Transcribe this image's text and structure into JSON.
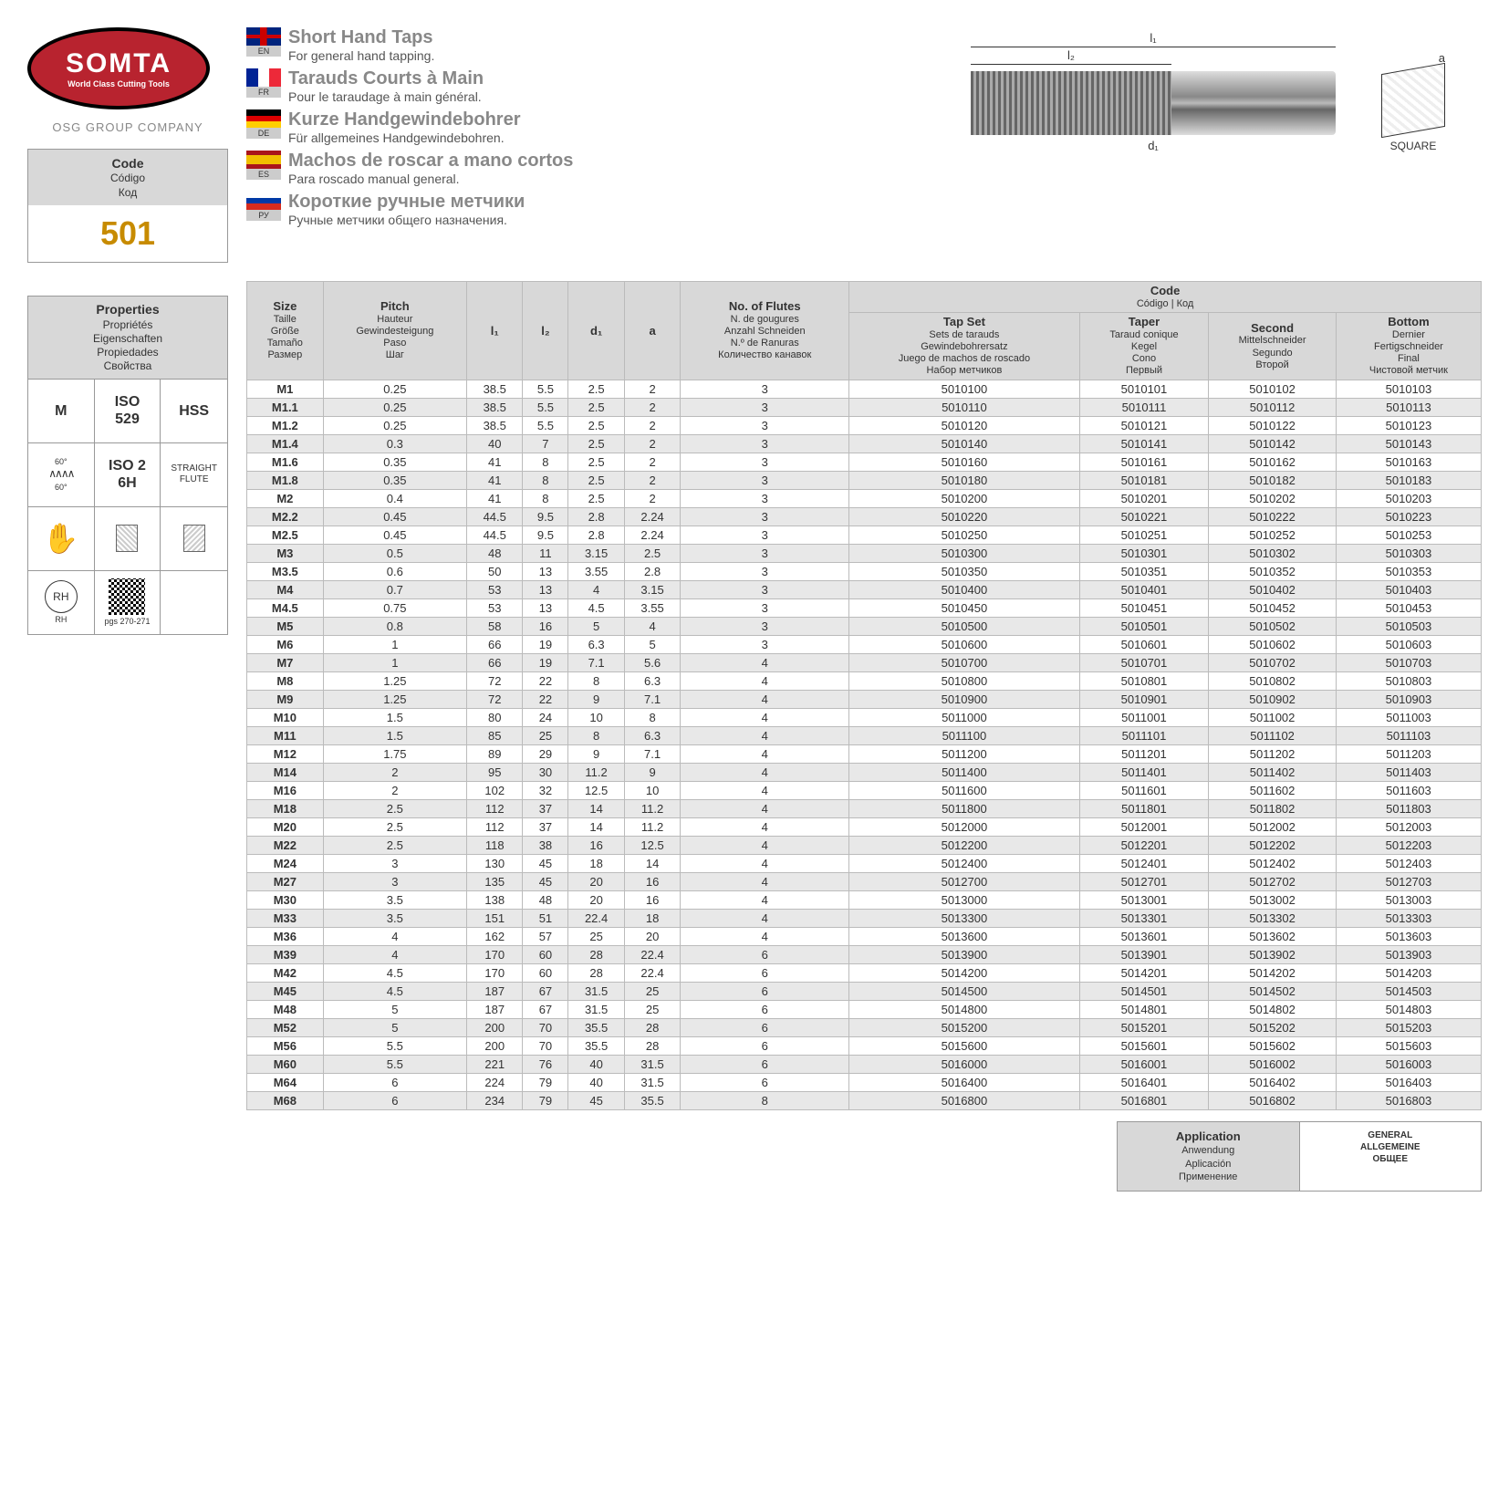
{
  "logo": {
    "title": "SOMTA",
    "sub": "World Class Cutting Tools",
    "osg": "OSG GROUP COMPANY"
  },
  "code": {
    "labels": [
      "Code",
      "Código",
      "Код"
    ],
    "value": "501"
  },
  "properties": {
    "labels": [
      "Properties",
      "Propriétés",
      "Eigenschaften",
      "Propiedades",
      "Свойства"
    ],
    "cells": [
      {
        "t": "M",
        "b": true
      },
      {
        "t": "ISO\n529",
        "b": true
      },
      {
        "t": "HSS",
        "b": true
      },
      {
        "icon": "zigzag",
        "t": "60°"
      },
      {
        "t": "ISO 2\n6H",
        "b": true
      },
      {
        "t": "STRAIGHT\nFLUTE"
      },
      {
        "icon": "hand"
      },
      {
        "icon": "sq1"
      },
      {
        "icon": "sq2"
      },
      {
        "icon": "rh",
        "t": "RH"
      },
      {
        "icon": "qr",
        "t": "pgs 270-271"
      },
      {
        "t": ""
      }
    ]
  },
  "langs": [
    {
      "code": "EN",
      "flag": "uk",
      "title": "Short Hand Taps",
      "desc": "For general hand tapping."
    },
    {
      "code": "FR",
      "flag": "fr",
      "title": "Tarauds Courts à Main",
      "desc": "Pour le taraudage à main général."
    },
    {
      "code": "DE",
      "flag": "de",
      "title": "Kurze Handgewindebohrer",
      "desc": "Für allgemeines Handgewindebohren."
    },
    {
      "code": "ES",
      "flag": "es",
      "title": "Machos de roscar a mano cortos",
      "desc": "Para roscado manual general."
    },
    {
      "code": "РУ",
      "flag": "ru",
      "title": "Короткие ручные метчики",
      "desc": "Ручные метчики общего назначения."
    }
  ],
  "diagram": {
    "l1": "l₁",
    "l2": "l₂",
    "d1": "d₁",
    "a": "a",
    "square": "SQUARE"
  },
  "table": {
    "headers": {
      "size": [
        "Size",
        "Taille",
        "Größe",
        "Tamaño",
        "Размер"
      ],
      "pitch": [
        "Pitch",
        "Hauteur",
        "Gewindesteigung",
        "Paso",
        "Шаг"
      ],
      "l1": "l₁",
      "l2": "l₂",
      "d1": "d₁",
      "a": "a",
      "flutes": [
        "No. of Flutes",
        "N. de gougures",
        "Anzahl Schneiden",
        "N.º de Ranuras",
        "Количество канавок"
      ],
      "code": [
        "Code",
        "Código | Код"
      ],
      "tapset": [
        "Tap Set",
        "Sets de tarauds",
        "Gewindebohrersatz",
        "Juego de machos de roscado",
        "Набор метчиков"
      ],
      "taper": [
        "Taper",
        "Taraud conique",
        "Kegel",
        "Cono",
        "Первый"
      ],
      "second": [
        "Second",
        "Mittelschneider",
        "Segundo",
        "Второй"
      ],
      "bottom": [
        "Bottom",
        "Dernier",
        "Fertigschneider",
        "Final",
        "Чистовой метчик"
      ]
    },
    "rows": [
      [
        "M1",
        "0.25",
        "38.5",
        "5.5",
        "2.5",
        "2",
        "3",
        "5010100",
        "5010101",
        "5010102",
        "5010103"
      ],
      [
        "M1.1",
        "0.25",
        "38.5",
        "5.5",
        "2.5",
        "2",
        "3",
        "5010110",
        "5010111",
        "5010112",
        "5010113"
      ],
      [
        "M1.2",
        "0.25",
        "38.5",
        "5.5",
        "2.5",
        "2",
        "3",
        "5010120",
        "5010121",
        "5010122",
        "5010123"
      ],
      [
        "M1.4",
        "0.3",
        "40",
        "7",
        "2.5",
        "2",
        "3",
        "5010140",
        "5010141",
        "5010142",
        "5010143"
      ],
      [
        "M1.6",
        "0.35",
        "41",
        "8",
        "2.5",
        "2",
        "3",
        "5010160",
        "5010161",
        "5010162",
        "5010163"
      ],
      [
        "M1.8",
        "0.35",
        "41",
        "8",
        "2.5",
        "2",
        "3",
        "5010180",
        "5010181",
        "5010182",
        "5010183"
      ],
      [
        "M2",
        "0.4",
        "41",
        "8",
        "2.5",
        "2",
        "3",
        "5010200",
        "5010201",
        "5010202",
        "5010203"
      ],
      [
        "M2.2",
        "0.45",
        "44.5",
        "9.5",
        "2.8",
        "2.24",
        "3",
        "5010220",
        "5010221",
        "5010222",
        "5010223"
      ],
      [
        "M2.5",
        "0.45",
        "44.5",
        "9.5",
        "2.8",
        "2.24",
        "3",
        "5010250",
        "5010251",
        "5010252",
        "5010253"
      ],
      [
        "M3",
        "0.5",
        "48",
        "11",
        "3.15",
        "2.5",
        "3",
        "5010300",
        "5010301",
        "5010302",
        "5010303"
      ],
      [
        "M3.5",
        "0.6",
        "50",
        "13",
        "3.55",
        "2.8",
        "3",
        "5010350",
        "5010351",
        "5010352",
        "5010353"
      ],
      [
        "M4",
        "0.7",
        "53",
        "13",
        "4",
        "3.15",
        "3",
        "5010400",
        "5010401",
        "5010402",
        "5010403"
      ],
      [
        "M4.5",
        "0.75",
        "53",
        "13",
        "4.5",
        "3.55",
        "3",
        "5010450",
        "5010451",
        "5010452",
        "5010453"
      ],
      [
        "M5",
        "0.8",
        "58",
        "16",
        "5",
        "4",
        "3",
        "5010500",
        "5010501",
        "5010502",
        "5010503"
      ],
      [
        "M6",
        "1",
        "66",
        "19",
        "6.3",
        "5",
        "3",
        "5010600",
        "5010601",
        "5010602",
        "5010603"
      ],
      [
        "M7",
        "1",
        "66",
        "19",
        "7.1",
        "5.6",
        "4",
        "5010700",
        "5010701",
        "5010702",
        "5010703"
      ],
      [
        "M8",
        "1.25",
        "72",
        "22",
        "8",
        "6.3",
        "4",
        "5010800",
        "5010801",
        "5010802",
        "5010803"
      ],
      [
        "M9",
        "1.25",
        "72",
        "22",
        "9",
        "7.1",
        "4",
        "5010900",
        "5010901",
        "5010902",
        "5010903"
      ],
      [
        "M10",
        "1.5",
        "80",
        "24",
        "10",
        "8",
        "4",
        "5011000",
        "5011001",
        "5011002",
        "5011003"
      ],
      [
        "M11",
        "1.5",
        "85",
        "25",
        "8",
        "6.3",
        "4",
        "5011100",
        "5011101",
        "5011102",
        "5011103"
      ],
      [
        "M12",
        "1.75",
        "89",
        "29",
        "9",
        "7.1",
        "4",
        "5011200",
        "5011201",
        "5011202",
        "5011203"
      ],
      [
        "M14",
        "2",
        "95",
        "30",
        "11.2",
        "9",
        "4",
        "5011400",
        "5011401",
        "5011402",
        "5011403"
      ],
      [
        "M16",
        "2",
        "102",
        "32",
        "12.5",
        "10",
        "4",
        "5011600",
        "5011601",
        "5011602",
        "5011603"
      ],
      [
        "M18",
        "2.5",
        "112",
        "37",
        "14",
        "11.2",
        "4",
        "5011800",
        "5011801",
        "5011802",
        "5011803"
      ],
      [
        "M20",
        "2.5",
        "112",
        "37",
        "14",
        "11.2",
        "4",
        "5012000",
        "5012001",
        "5012002",
        "5012003"
      ],
      [
        "M22",
        "2.5",
        "118",
        "38",
        "16",
        "12.5",
        "4",
        "5012200",
        "5012201",
        "5012202",
        "5012203"
      ],
      [
        "M24",
        "3",
        "130",
        "45",
        "18",
        "14",
        "4",
        "5012400",
        "5012401",
        "5012402",
        "5012403"
      ],
      [
        "M27",
        "3",
        "135",
        "45",
        "20",
        "16",
        "4",
        "5012700",
        "5012701",
        "5012702",
        "5012703"
      ],
      [
        "M30",
        "3.5",
        "138",
        "48",
        "20",
        "16",
        "4",
        "5013000",
        "5013001",
        "5013002",
        "5013003"
      ],
      [
        "M33",
        "3.5",
        "151",
        "51",
        "22.4",
        "18",
        "4",
        "5013300",
        "5013301",
        "5013302",
        "5013303"
      ],
      [
        "M36",
        "4",
        "162",
        "57",
        "25",
        "20",
        "4",
        "5013600",
        "5013601",
        "5013602",
        "5013603"
      ],
      [
        "M39",
        "4",
        "170",
        "60",
        "28",
        "22.4",
        "6",
        "5013900",
        "5013901",
        "5013902",
        "5013903"
      ],
      [
        "M42",
        "4.5",
        "170",
        "60",
        "28",
        "22.4",
        "6",
        "5014200",
        "5014201",
        "5014202",
        "5014203"
      ],
      [
        "M45",
        "4.5",
        "187",
        "67",
        "31.5",
        "25",
        "6",
        "5014500",
        "5014501",
        "5014502",
        "5014503"
      ],
      [
        "M48",
        "5",
        "187",
        "67",
        "31.5",
        "25",
        "6",
        "5014800",
        "5014801",
        "5014802",
        "5014803"
      ],
      [
        "M52",
        "5",
        "200",
        "70",
        "35.5",
        "28",
        "6",
        "5015200",
        "5015201",
        "5015202",
        "5015203"
      ],
      [
        "M56",
        "5.5",
        "200",
        "70",
        "35.5",
        "28",
        "6",
        "5015600",
        "5015601",
        "5015602",
        "5015603"
      ],
      [
        "M60",
        "5.5",
        "221",
        "76",
        "40",
        "31.5",
        "6",
        "5016000",
        "5016001",
        "5016002",
        "5016003"
      ],
      [
        "M64",
        "6",
        "224",
        "79",
        "40",
        "31.5",
        "6",
        "5016400",
        "5016401",
        "5016402",
        "5016403"
      ],
      [
        "M68",
        "6",
        "234",
        "79",
        "45",
        "35.5",
        "8",
        "5016800",
        "5016801",
        "5016802",
        "5016803"
      ]
    ]
  },
  "application": {
    "labels": [
      "Application",
      "Anwendung",
      "Aplicación",
      "Применение"
    ],
    "value": [
      "GENERAL",
      "ALLGEMEINE",
      "ОБЩЕЕ"
    ]
  }
}
